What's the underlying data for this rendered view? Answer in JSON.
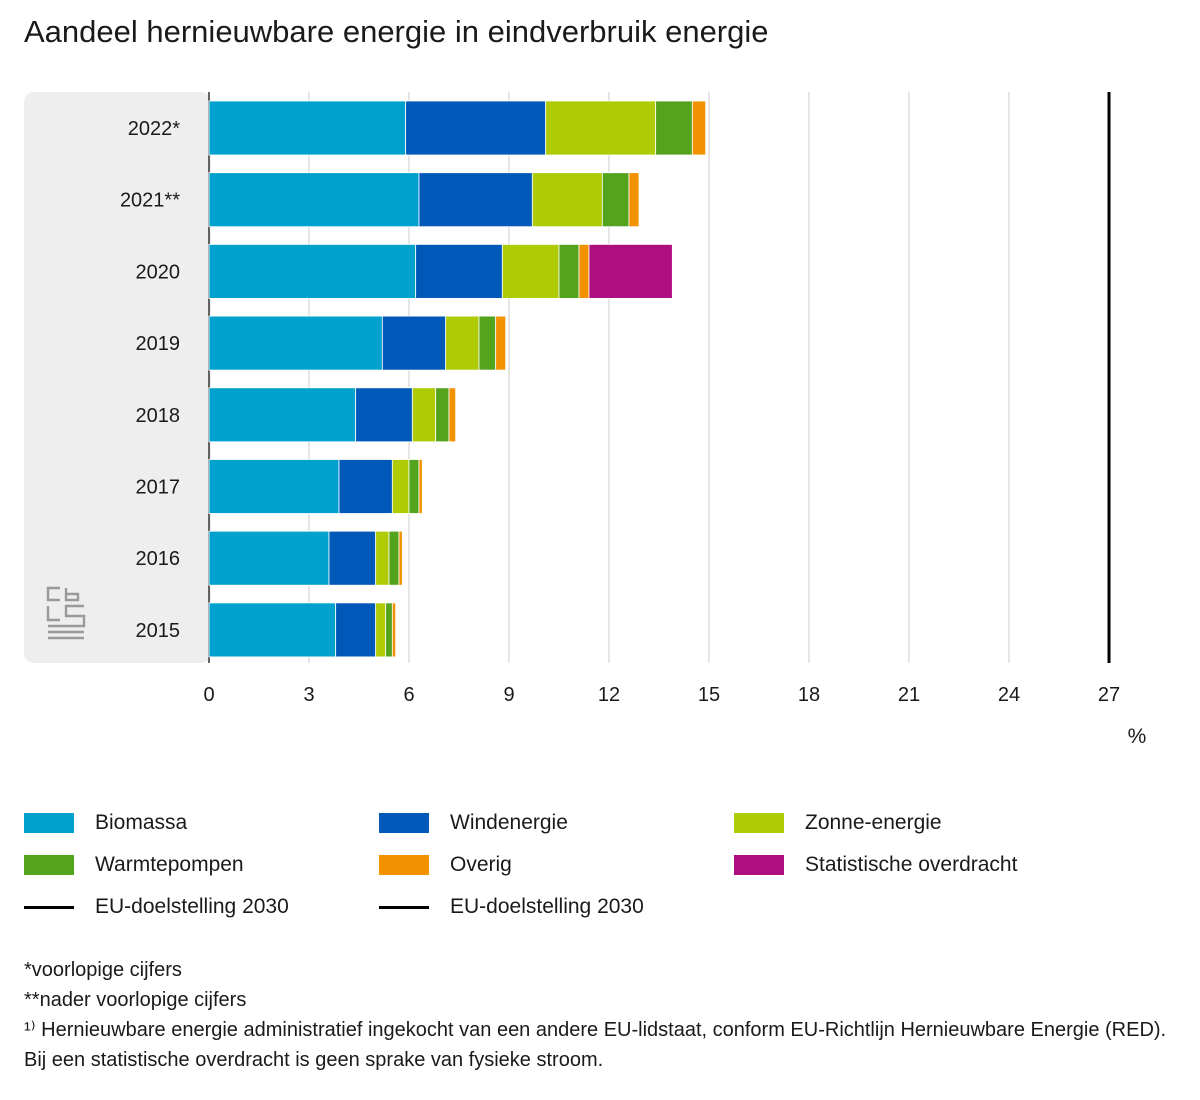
{
  "title": "Aandeel hernieuwbare energie in eindverbruik energie",
  "unit_label": "%",
  "chart_data": {
    "type": "bar",
    "orientation": "horizontal",
    "stacked": true,
    "title": "Aandeel hernieuwbare energie in eindverbruik energie",
    "xlabel": "%",
    "ylabel": "",
    "xlim": [
      0,
      27
    ],
    "x_ticks": [
      0,
      3,
      6,
      9,
      12,
      15,
      18,
      21,
      24,
      27
    ],
    "grid": true,
    "legend_position": "bottom",
    "categories": [
      "2022*",
      "2021**",
      "2020",
      "2019",
      "2018",
      "2017",
      "2016",
      "2015"
    ],
    "series": [
      {
        "name": "Biomassa",
        "color": "#00a1cd",
        "values": [
          5.9,
          6.3,
          6.2,
          5.2,
          4.4,
          3.9,
          3.6,
          3.8
        ]
      },
      {
        "name": "Windenergie",
        "color": "#0058b8",
        "values": [
          4.2,
          3.4,
          2.6,
          1.9,
          1.7,
          1.6,
          1.4,
          1.2
        ]
      },
      {
        "name": "Zonne-energie",
        "color": "#afcb05",
        "values": [
          3.3,
          2.1,
          1.7,
          1.0,
          0.7,
          0.5,
          0.4,
          0.3
        ]
      },
      {
        "name": "Warmtepompen",
        "color": "#53a31d",
        "values": [
          1.1,
          0.8,
          0.6,
          0.5,
          0.4,
          0.3,
          0.3,
          0.2
        ]
      },
      {
        "name": "Overig",
        "color": "#f39200",
        "values": [
          0.4,
          0.3,
          0.3,
          0.3,
          0.2,
          0.1,
          0.1,
          0.1
        ]
      },
      {
        "name": "Statistische overdracht",
        "color": "#af0e80",
        "values": [
          0,
          0,
          2.5,
          0,
          0,
          0,
          0,
          0
        ]
      }
    ],
    "target_line": {
      "name": "EU-doelstelling 2030",
      "value": 27,
      "color": "#000000"
    }
  },
  "legend": [
    {
      "label": "Biomassa",
      "color": "#00a1cd",
      "kind": "swatch"
    },
    {
      "label": "Windenergie",
      "color": "#0058b8",
      "kind": "swatch"
    },
    {
      "label": "Zonne-energie",
      "color": "#afcb05",
      "kind": "swatch"
    },
    {
      "label": "Warmtepompen",
      "color": "#53a31d",
      "kind": "swatch"
    },
    {
      "label": "Overig",
      "color": "#f39200",
      "kind": "swatch"
    },
    {
      "label": "Statistische overdracht",
      "color": "#af0e80",
      "kind": "swatch"
    },
    {
      "label": "EU-doelstelling 2030",
      "color": "#000000",
      "kind": "line"
    },
    {
      "label": "EU-doelstelling 2030",
      "color": "#000000",
      "kind": "line"
    }
  ],
  "notes": {
    "line1": "*voorlopige cijfers",
    "line2": "**nader voorlopige cijfers",
    "line3": "¹⁾ Hernieuwbare energie administratief ingekocht van een andere EU-lidstaat, conform EU-Richtlijn Hernieuwbare Energie (RED). Bij een statistische overdracht is geen sprake van fysieke stroom."
  },
  "logo_icon": "cbs-logo-icon"
}
